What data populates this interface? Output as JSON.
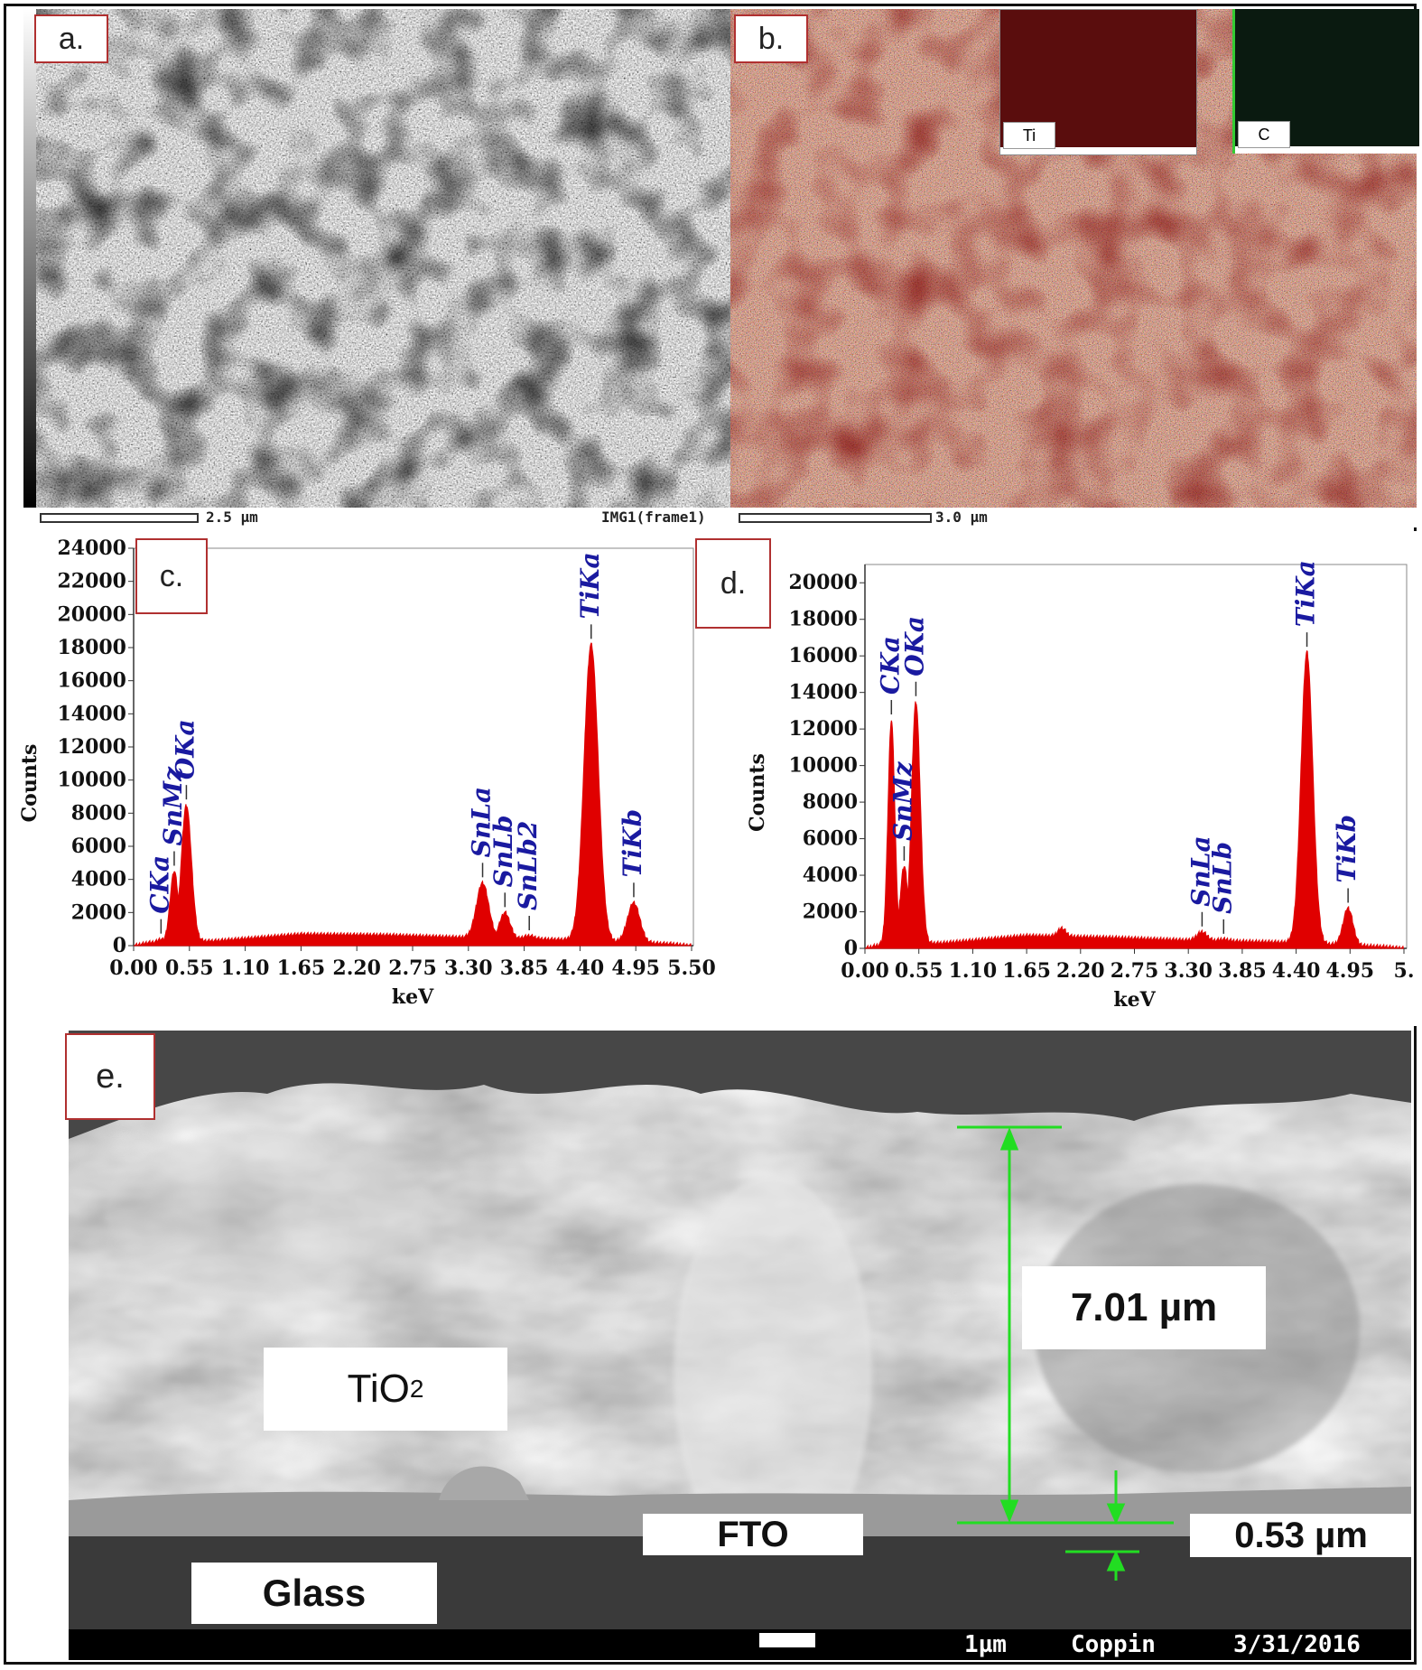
{
  "panel_a": {
    "label": "a.",
    "scale_text": "2.5 µm"
  },
  "panel_b": {
    "label": "b.",
    "scale_text": "3.0 µm",
    "image_title": "IMG1(frame1)",
    "inset_ti": "Ti",
    "inset_c": "C"
  },
  "chart_data": [
    {
      "type": "area",
      "panel": "c.",
      "xlabel": "keV",
      "ylabel": "Counts",
      "xlim": [
        0,
        5.5
      ],
      "ylim": [
        0,
        24000
      ],
      "x_ticks": [
        "0.00",
        "0.55",
        "1.10",
        "1.65",
        "2.20",
        "2.75",
        "3.30",
        "3.85",
        "4.40",
        "4.95",
        "5.50"
      ],
      "y_ticks": [
        "0",
        "2000",
        "4000",
        "6000",
        "8000",
        "10000",
        "12000",
        "14000",
        "16000",
        "18000",
        "20000",
        "22000",
        "24000"
      ],
      "peaks": [
        {
          "label": "CKa",
          "x": 0.27,
          "y": 400
        },
        {
          "label": "SnMz",
          "x": 0.4,
          "y": 4500
        },
        {
          "label": "OKa",
          "x": 0.52,
          "y": 8500
        },
        {
          "label": "SnLa",
          "x": 3.44,
          "y": 3800
        },
        {
          "label": "SnLb",
          "x": 3.66,
          "y": 2000
        },
        {
          "label": "SnLb2",
          "x": 3.9,
          "y": 600
        },
        {
          "label": "TiKa",
          "x": 4.51,
          "y": 18200
        },
        {
          "label": "TiKb",
          "x": 4.93,
          "y": 2600
        }
      ],
      "peak_widths": [
        0.03,
        0.04,
        0.05,
        0.06,
        0.05,
        0.05,
        0.07,
        0.06
      ],
      "background": [
        [
          0,
          0
        ],
        [
          0.15,
          200
        ],
        [
          0.8,
          300
        ],
        [
          1.65,
          700
        ],
        [
          2.5,
          650
        ],
        [
          3.3,
          500
        ],
        [
          4.2,
          380
        ],
        [
          5.3,
          120
        ],
        [
          5.5,
          0
        ]
      ]
    },
    {
      "type": "area",
      "panel": "d.",
      "xlabel": "keV",
      "ylabel": "Counts",
      "xlim": [
        0,
        5.5
      ],
      "ylim": [
        0,
        21000
      ],
      "x_ticks": [
        "0.00",
        "0.55",
        "1.10",
        "1.65",
        "2.20",
        "2.75",
        "3.30",
        "3.85",
        "4.40",
        "4.95",
        "5."
      ],
      "y_ticks": [
        "0",
        "2000",
        "4000",
        "6000",
        "8000",
        "10000",
        "12000",
        "14000",
        "16000",
        "18000",
        "20000"
      ],
      "peaks": [
        {
          "label": "CKa",
          "x": 0.27,
          "y": 12500
        },
        {
          "label": "SnMz",
          "x": 0.4,
          "y": 4500
        },
        {
          "label": "OKa",
          "x": 0.52,
          "y": 13500
        },
        {
          "label": "SnLa",
          "x": 3.44,
          "y": 900
        },
        {
          "label": "SnLb",
          "x": 3.66,
          "y": 500
        },
        {
          "label": "TiKa",
          "x": 4.51,
          "y": 16200
        },
        {
          "label": "TiKb",
          "x": 4.93,
          "y": 2200
        }
      ],
      "peak_widths": [
        0.035,
        0.04,
        0.045,
        0.05,
        0.05,
        0.06,
        0.05
      ],
      "extra_bumps": [
        {
          "x": 2.01,
          "y": 1100,
          "w": 0.04
        }
      ],
      "background": [
        [
          0,
          0
        ],
        [
          0.15,
          200
        ],
        [
          0.8,
          300
        ],
        [
          1.65,
          700
        ],
        [
          2.5,
          600
        ],
        [
          3.3,
          450
        ],
        [
          4.2,
          350
        ],
        [
          5.3,
          100
        ],
        [
          5.5,
          0
        ]
      ]
    }
  ],
  "panel_e": {
    "label": "e.",
    "layer_tio2": "TiO",
    "layer_tio2_sub": "2",
    "layer_fto": "FTO",
    "layer_glass": "Glass",
    "thickness_film": "7.01 µm",
    "thickness_fto": "0.53 µm",
    "footer_scale": "1µm",
    "footer_operator": "Coppin",
    "footer_date": "3/31/2016"
  },
  "colors": {
    "spectrum": "#e00000",
    "peak_label": "#1a1aa0",
    "arrow": "#22dd22",
    "tag_border": "#b03030"
  }
}
